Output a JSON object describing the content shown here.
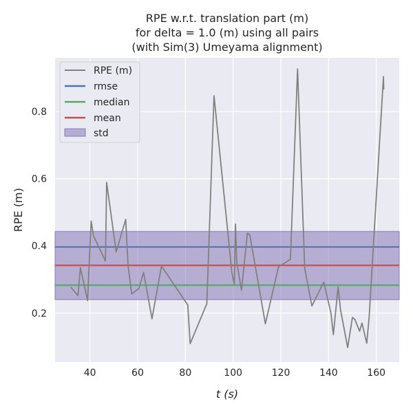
{
  "chart_data": {
    "type": "line",
    "title": [
      "RPE w.r.t. translation part (m)",
      "for delta = 1.0 (m) using all pairs",
      "(with Sim(3) Umeyama alignment)"
    ],
    "xlabel": "t (s)",
    "ylabel": "RPE (m)",
    "xlim": [
      25.4,
      169.6
    ],
    "ylim": [
      0.054,
      0.96
    ],
    "xticks": [
      40,
      60,
      80,
      100,
      120,
      140,
      160
    ],
    "yticks": [
      0.2,
      0.4,
      0.6,
      0.8
    ],
    "grid": true,
    "legend_position": "top-left",
    "series": [
      {
        "name": "RPE (m)",
        "color": "#808080",
        "x": [
          32,
          35,
          36,
          39,
          40.5,
          41.5,
          46.5,
          47,
          51,
          55,
          56,
          57.5,
          60.5,
          62.5,
          66,
          70,
          81,
          82,
          89,
          92,
          99.5,
          100.5,
          101,
          101.5,
          103.5,
          106,
          107,
          113.5,
          119,
          124,
          127,
          130,
          133,
          138,
          141,
          142,
          144,
          145,
          148,
          150,
          151,
          153,
          154,
          156,
          157,
          163,
          163.1
        ],
        "y": [
          0.277,
          0.252,
          0.335,
          0.237,
          0.474,
          0.43,
          0.355,
          0.589,
          0.382,
          0.479,
          0.34,
          0.257,
          0.273,
          0.321,
          0.183,
          0.34,
          0.224,
          0.109,
          0.228,
          0.847,
          0.32,
          0.285,
          0.465,
          0.352,
          0.268,
          0.438,
          0.433,
          0.168,
          0.337,
          0.36,
          0.927,
          0.333,
          0.221,
          0.292,
          0.2,
          0.136,
          0.278,
          0.21,
          0.097,
          0.187,
          0.181,
          0.146,
          0.17,
          0.11,
          0.188,
          0.904,
          0.866
        ]
      },
      {
        "name": "rmse",
        "color": "#4c72b0",
        "value": 0.397
      },
      {
        "name": "median",
        "color": "#55a868",
        "value": 0.283
      },
      {
        "name": "mean",
        "color": "#c44e52",
        "value": 0.342
      },
      {
        "name": "std",
        "color": "#8172b2",
        "band": [
          0.24,
          0.443
        ]
      }
    ]
  }
}
